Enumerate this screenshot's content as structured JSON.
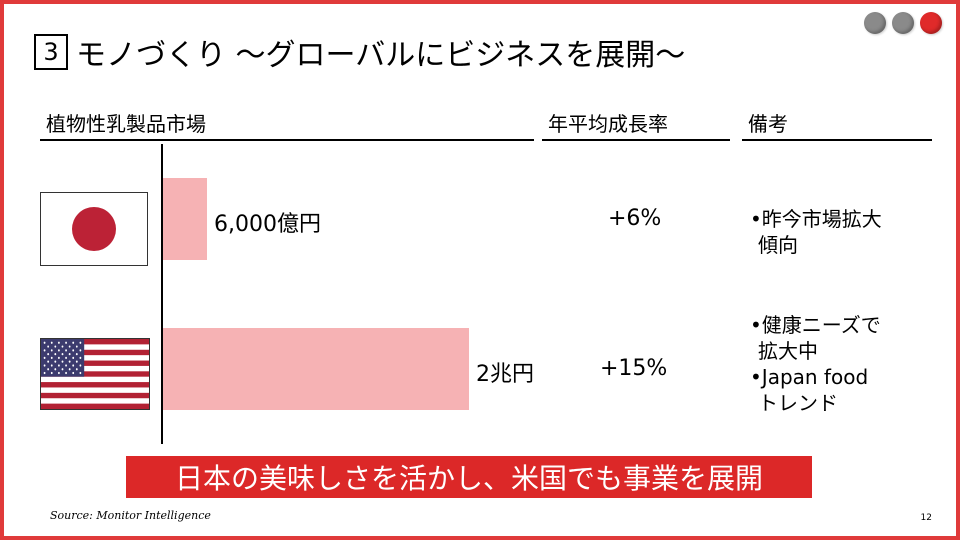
{
  "header": {
    "number": "3",
    "title": "モノづくり ～グローバルにビジネスを展開～"
  },
  "columns": {
    "market": "植物性乳製品市場",
    "growth": "年平均成長率",
    "notes": "備考"
  },
  "rows": [
    {
      "country_flag": "japan-flag",
      "market_value": "6,000億円",
      "market_size_yen": 600000000000,
      "growth": "+6%",
      "notes": [
        "•昨今市場拡大",
        "  傾向"
      ]
    },
    {
      "country_flag": "usa-flag",
      "market_value": "2兆円",
      "market_size_yen": 2000000000000,
      "growth": "+15%",
      "notes": [
        "•健康ニーズで",
        "  拡大中",
        "•Japan food",
        "  トレンド"
      ]
    }
  ],
  "banner": "日本の美味しさを活かし、米国でも事業を展開",
  "source": "Source: Monitor Intelligence",
  "page_number": "12",
  "colors": {
    "accent": "#e03a3a",
    "bar": "#f6b2b4",
    "banner": "#dc2828"
  }
}
